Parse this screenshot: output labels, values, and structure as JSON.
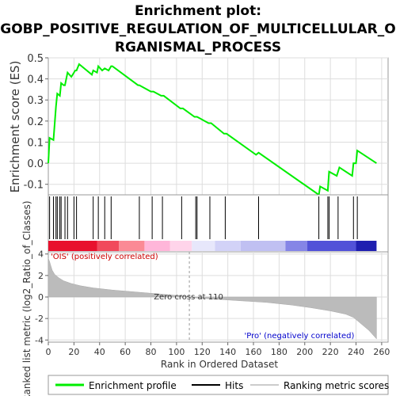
{
  "title": {
    "line1": "Enrichment plot:",
    "line2": "GOBP_POSITIVE_REGULATION_OF_MULTICELLULAR_O",
    "line3": "RGANISMAL_PROCESS"
  },
  "colors": {
    "enrichment_line": "#00ee00",
    "hits": "#000000",
    "metric_fill": "#bbbbbb",
    "positive_label": "#cc0000",
    "negative_label": "#0000cc",
    "grid": "#dddddd"
  },
  "chart_data": [
    {
      "type": "line",
      "name": "enrichment-profile",
      "ylabel": "Enrichment score (ES)",
      "xlim": [
        0,
        265
      ],
      "ylim": [
        -0.15,
        0.5
      ],
      "y_ticks": [
        -0.1,
        0.0,
        0.1,
        0.2,
        0.3,
        0.4,
        0.5
      ],
      "y_tick_labels": [
        "-0.1",
        "0.0",
        "0.1",
        "0.2",
        "0.3",
        "0.4",
        "0.5"
      ],
      "grid": true,
      "series": [
        {
          "name": "Enrichment profile",
          "x": [
            0,
            1,
            4,
            6,
            7,
            9,
            10,
            12,
            13,
            15,
            18,
            20,
            21,
            22,
            24,
            34,
            35,
            38,
            39,
            42,
            44,
            47,
            49,
            50,
            70,
            71,
            80,
            82,
            88,
            90,
            103,
            105,
            114,
            116,
            125,
            127,
            137,
            139,
            162,
            164,
            211,
            212,
            218,
            219,
            225,
            227,
            237,
            238,
            240,
            241,
            256
          ],
          "y": [
            0.0,
            0.12,
            0.11,
            0.27,
            0.33,
            0.32,
            0.38,
            0.37,
            0.37,
            0.43,
            0.41,
            0.43,
            0.44,
            0.44,
            0.47,
            0.42,
            0.44,
            0.43,
            0.46,
            0.44,
            0.45,
            0.44,
            0.46,
            0.46,
            0.37,
            0.37,
            0.34,
            0.34,
            0.32,
            0.32,
            0.26,
            0.26,
            0.22,
            0.22,
            0.19,
            0.19,
            0.14,
            0.14,
            0.04,
            0.05,
            -0.15,
            -0.11,
            -0.13,
            -0.04,
            -0.06,
            -0.02,
            -0.06,
            0.0,
            0.0,
            0.06,
            0.0
          ]
        }
      ]
    },
    {
      "type": "rug",
      "name": "hits",
      "xlim": [
        0,
        265
      ],
      "hits": [
        1,
        4,
        6,
        7,
        9,
        10,
        13,
        15,
        20,
        22,
        35,
        39,
        44,
        49,
        71,
        81,
        89,
        104,
        115,
        116,
        126,
        138,
        164,
        211,
        218,
        219,
        226,
        238,
        241
      ]
    },
    {
      "type": "heatmap",
      "name": "ranked-gradient",
      "xlim": [
        0,
        265
      ],
      "bands": [
        {
          "from": 0,
          "to": 38,
          "color": "#e8112d"
        },
        {
          "from": 38,
          "to": 55,
          "color": "#f14a5c"
        },
        {
          "from": 55,
          "to": 75,
          "color": "#fb8a95"
        },
        {
          "from": 75,
          "to": 95,
          "color": "#ffb6d9"
        },
        {
          "from": 95,
          "to": 112,
          "color": "#ffd4ea"
        },
        {
          "from": 112,
          "to": 130,
          "color": "#e7e7fb"
        },
        {
          "from": 130,
          "to": 150,
          "color": "#d2d2f7"
        },
        {
          "from": 150,
          "to": 185,
          "color": "#c0c0f2"
        },
        {
          "from": 185,
          "to": 202,
          "color": "#8585e6"
        },
        {
          "from": 202,
          "to": 240,
          "color": "#5252d8"
        },
        {
          "from": 240,
          "to": 256,
          "color": "#2020b0"
        }
      ]
    },
    {
      "type": "area",
      "name": "ranked-list-metric",
      "ylabel": "Ranked list metric (log2_Ratio_of_Classes)",
      "xlabel": "Rank in Ordered Dataset",
      "xlim": [
        0,
        265
      ],
      "ylim": [
        -4.2,
        4.2
      ],
      "x_ticks": [
        0,
        20,
        40,
        60,
        80,
        100,
        120,
        140,
        160,
        180,
        200,
        220,
        240,
        260
      ],
      "x_tick_labels": [
        "0",
        "20",
        "40",
        "60",
        "80",
        "100",
        "120",
        "140",
        "160",
        "180",
        "200",
        "220",
        "240",
        "260"
      ],
      "y_ticks": [
        -4,
        -2,
        0,
        2,
        4
      ],
      "y_tick_labels": [
        "-4",
        "-2",
        "0",
        "2",
        "4"
      ],
      "x": [
        0,
        1,
        2,
        3,
        5,
        8,
        12,
        18,
        25,
        35,
        50,
        70,
        90,
        109,
        110,
        111,
        130,
        150,
        170,
        190,
        205,
        220,
        232,
        238,
        242,
        246,
        250,
        253,
        256
      ],
      "y": [
        3.6,
        3.3,
        2.9,
        2.5,
        2.1,
        1.8,
        1.5,
        1.25,
        1.05,
        0.85,
        0.65,
        0.45,
        0.25,
        0.05,
        0.0,
        -0.05,
        -0.2,
        -0.35,
        -0.5,
        -0.75,
        -1.0,
        -1.3,
        -1.6,
        -1.9,
        -2.3,
        -2.7,
        -3.1,
        -3.5,
        -3.9
      ],
      "annotations": {
        "positive": "'OIS' (positively correlated)",
        "negative": "'Pro' (negatively correlated)",
        "zero_cross": "Zero cross at 110"
      },
      "zero_cross_x": 110
    }
  ],
  "legend": {
    "items": [
      {
        "label": "Enrichment profile",
        "symbol": "green-line"
      },
      {
        "label": "Hits",
        "symbol": "black-line"
      },
      {
        "label": "Ranking metric scores",
        "symbol": "gray-line"
      }
    ]
  }
}
